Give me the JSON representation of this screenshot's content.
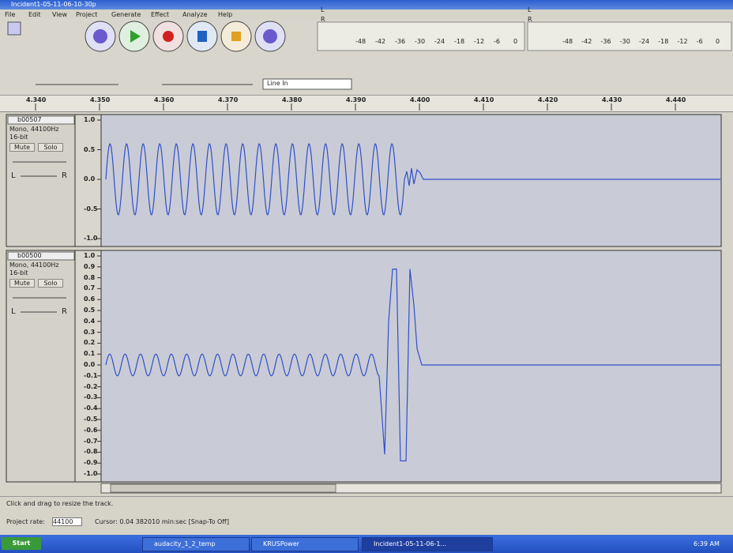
{
  "window": {
    "title": "Incident1-05-11-06-10-30p"
  },
  "menu": [
    "File",
    "Edit",
    "View",
    "Project",
    "Generate",
    "Effect",
    "Analyze",
    "Help"
  ],
  "meter": {
    "left_channel": "L",
    "right_channel": "R",
    "ticks": [
      "-48",
      "-42",
      "-36",
      "-30",
      "-24",
      "-18",
      "-12",
      "-6",
      "0"
    ]
  },
  "input_source": "Line In",
  "ruler": [
    "4.340",
    "4.350",
    "4.360",
    "4.370",
    "4.380",
    "4.390",
    "4.400",
    "4.410",
    "4.420",
    "4.430",
    "4.440"
  ],
  "tracks": [
    {
      "name": "b00507",
      "format": "Mono, 44100Hz",
      "bit_depth": "16-bit",
      "mute": "Mute",
      "solo": "Solo",
      "pan_left": "L",
      "pan_right": "R",
      "scale": [
        "1.0",
        "0.5",
        "0.0",
        "-0.5",
        "-1.0"
      ]
    },
    {
      "name": "b00500",
      "format": "Mono, 44100Hz",
      "bit_depth": "16-bit",
      "mute": "Mute",
      "solo": "Solo",
      "pan_left": "L",
      "pan_right": "R",
      "scale": [
        "1.0",
        "0.9",
        "0.8",
        "0.7",
        "0.6",
        "0.5",
        "0.4",
        "0.3",
        "0.2",
        "0.1",
        "0.0",
        "-0.1",
        "-0.2",
        "-0.3",
        "-0.4",
        "-0.5",
        "-0.6",
        "-0.7",
        "-0.8",
        "-0.9",
        "-1.0"
      ]
    }
  ],
  "status": {
    "message": "Click and drag to resize the track.",
    "project_rate_label": "Project rate:",
    "project_rate": "44100",
    "cursor": "Cursor: 0.04 382010 min:sec  [Snap-To Off]"
  },
  "taskbar": {
    "start": "Start",
    "tasks": [
      "audacity_1_2_temp",
      "KRUSPower",
      "Incident1-05-11-06-1..."
    ],
    "clock": "6:39 AM"
  }
}
